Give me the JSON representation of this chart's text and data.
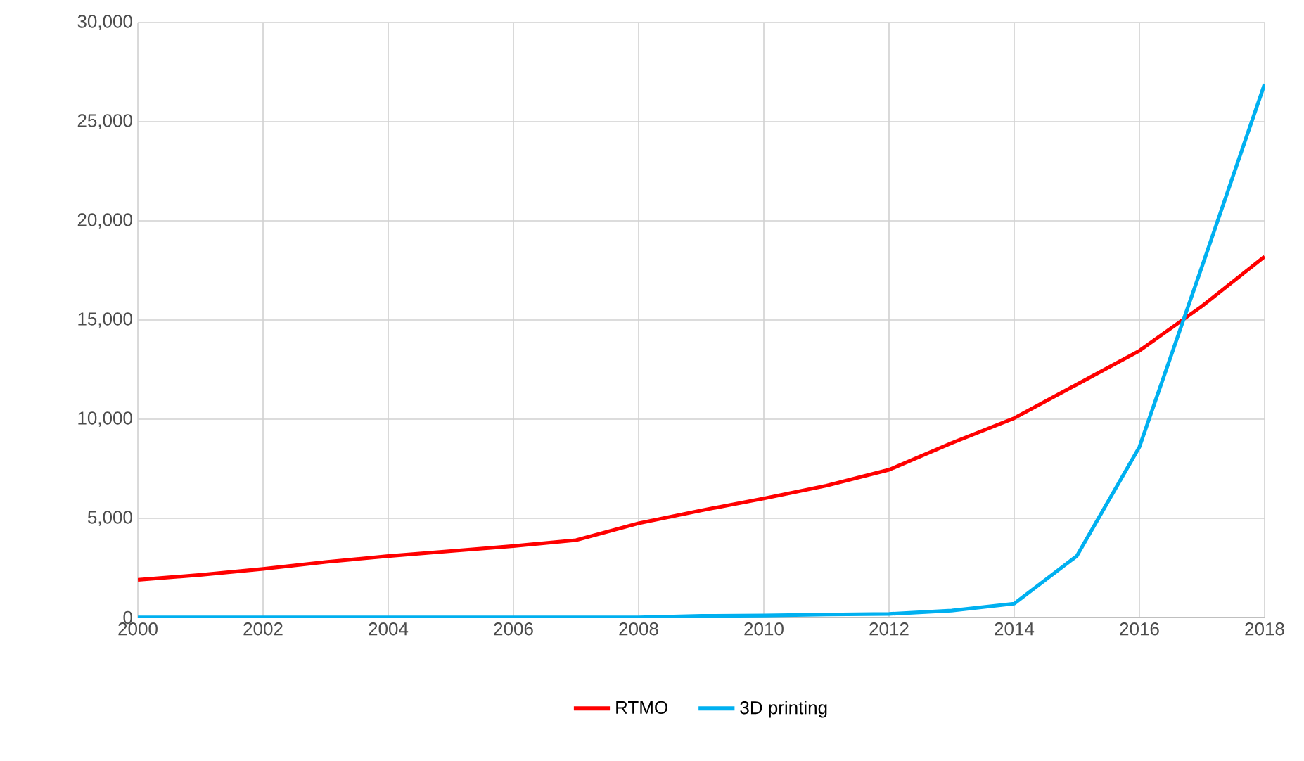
{
  "chart_data": {
    "type": "line",
    "x": [
      2000,
      2001,
      2002,
      2003,
      2004,
      2005,
      2006,
      2007,
      2008,
      2009,
      2010,
      2011,
      2012,
      2013,
      2014,
      2015,
      2016,
      2017,
      2018
    ],
    "series": [
      {
        "name": "RTMO",
        "color": "#ff0000",
        "values": [
          1900,
          2150,
          2450,
          2800,
          3100,
          3350,
          3600,
          3900,
          4750,
          5400,
          6000,
          6650,
          7450,
          8800,
          10050,
          11750,
          13450,
          15700,
          18200
        ]
      },
      {
        "name": "3D printing",
        "color": "#00b0f0",
        "values": [
          0,
          0,
          0,
          0,
          0,
          0,
          0,
          0,
          0,
          80,
          100,
          150,
          180,
          350,
          700,
          3100,
          8600,
          17700,
          26900
        ]
      }
    ],
    "xlim": [
      2000,
      2018
    ],
    "xticks": [
      2000,
      2002,
      2004,
      2006,
      2008,
      2010,
      2012,
      2014,
      2016,
      2018
    ],
    "ylim": [
      0,
      30000
    ],
    "yticks": [
      {
        "value": 0,
        "label": "0"
      },
      {
        "value": 5000,
        "label": "5,000"
      },
      {
        "value": 10000,
        "label": "10,000"
      },
      {
        "value": 15000,
        "label": "15,000"
      },
      {
        "value": 20000,
        "label": "20,000"
      },
      {
        "value": 25000,
        "label": "25,000"
      },
      {
        "value": 30000,
        "label": "30,000"
      }
    ],
    "grid": true,
    "legend": "bottom",
    "marker": "none",
    "line_style": "solid"
  }
}
